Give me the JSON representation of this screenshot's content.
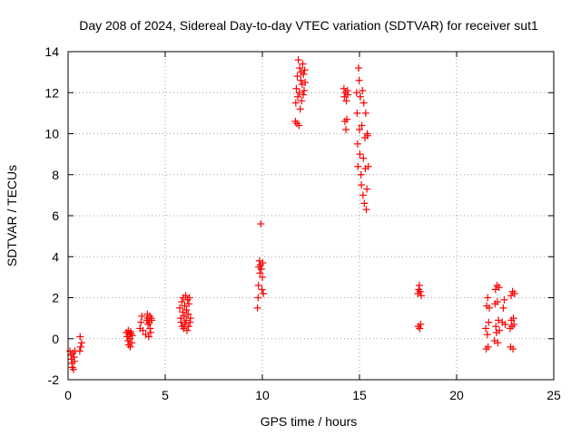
{
  "chart_data": {
    "type": "scatter",
    "title": "Day 208 of 2024, Sidereal Day-to-day VTEC variation (SDTVAR) for receiver sut1",
    "xlabel": "GPS time / hours",
    "ylabel": "SDTVAR / TECUs",
    "xlim": [
      0,
      25
    ],
    "ylim": [
      -2,
      14
    ],
    "xticks": [
      0,
      5,
      10,
      15,
      20,
      25
    ],
    "yticks": [
      -2,
      0,
      2,
      4,
      6,
      8,
      10,
      12,
      14
    ],
    "grid": true,
    "marker": "plus",
    "color": "#ff0000",
    "series": [
      {
        "name": "sut1",
        "points": [
          [
            0.1,
            -0.6
          ],
          [
            0.15,
            -0.8
          ],
          [
            0.18,
            -1.0
          ],
          [
            0.2,
            -1.2
          ],
          [
            0.22,
            -1.4
          ],
          [
            0.25,
            -0.7
          ],
          [
            0.28,
            -1.5
          ],
          [
            0.3,
            -0.9
          ],
          [
            0.32,
            -1.1
          ],
          [
            0.35,
            -0.6
          ],
          [
            0.6,
            -0.6
          ],
          [
            0.62,
            0.1
          ],
          [
            0.65,
            -0.4
          ],
          [
            0.7,
            -0.2
          ],
          [
            3.0,
            0.3
          ],
          [
            3.05,
            0.1
          ],
          [
            3.08,
            -0.1
          ],
          [
            3.1,
            0.4
          ],
          [
            3.12,
            -0.3
          ],
          [
            3.15,
            0.2
          ],
          [
            3.18,
            0.0
          ],
          [
            3.2,
            -0.4
          ],
          [
            3.22,
            0.35
          ],
          [
            3.25,
            0.25
          ],
          [
            3.28,
            -0.2
          ],
          [
            3.3,
            0.15
          ],
          [
            3.7,
            0.5
          ],
          [
            3.75,
            0.8
          ],
          [
            3.8,
            1.1
          ],
          [
            3.85,
            0.4
          ],
          [
            4.0,
            0.2
          ],
          [
            4.05,
            0.9
          ],
          [
            4.08,
            1.2
          ],
          [
            4.1,
            1.0
          ],
          [
            4.12,
            0.7
          ],
          [
            4.15,
            0.1
          ],
          [
            4.18,
            0.8
          ],
          [
            4.2,
            1.1
          ],
          [
            4.22,
            0.5
          ],
          [
            4.25,
            0.3
          ],
          [
            4.28,
            1.0
          ],
          [
            4.3,
            0.9
          ],
          [
            5.75,
            1.5
          ],
          [
            5.8,
            1.0
          ],
          [
            5.82,
            0.8
          ],
          [
            5.85,
            1.8
          ],
          [
            5.88,
            0.6
          ],
          [
            5.9,
            1.3
          ],
          [
            5.92,
            2.0
          ],
          [
            5.95,
            0.5
          ],
          [
            5.98,
            1.1
          ],
          [
            6.0,
            1.6
          ],
          [
            6.02,
            0.7
          ],
          [
            6.05,
            2.1
          ],
          [
            6.08,
            0.9
          ],
          [
            6.1,
            1.4
          ],
          [
            6.12,
            0.4
          ],
          [
            6.15,
            1.9
          ],
          [
            6.18,
            1.2
          ],
          [
            6.2,
            0.6
          ],
          [
            6.22,
            1.7
          ],
          [
            6.25,
            2.0
          ],
          [
            6.28,
            0.8
          ],
          [
            6.3,
            1.0
          ],
          [
            9.75,
            1.5
          ],
          [
            9.78,
            2.0
          ],
          [
            9.8,
            2.6
          ],
          [
            9.82,
            3.5
          ],
          [
            9.85,
            3.8
          ],
          [
            9.88,
            3.2
          ],
          [
            9.9,
            3.6
          ],
          [
            9.92,
            5.6
          ],
          [
            9.95,
            3.4
          ],
          [
            9.98,
            2.4
          ],
          [
            10.0,
            3.0
          ],
          [
            10.02,
            3.7
          ],
          [
            10.05,
            2.2
          ],
          [
            11.7,
            10.6
          ],
          [
            11.72,
            11.5
          ],
          [
            11.75,
            12.2
          ],
          [
            11.78,
            10.5
          ],
          [
            11.8,
            12.8
          ],
          [
            11.82,
            11.8
          ],
          [
            11.85,
            13.6
          ],
          [
            11.88,
            10.4
          ],
          [
            11.9,
            12.0
          ],
          [
            11.92,
            13.2
          ],
          [
            11.95,
            11.2
          ],
          [
            11.98,
            12.6
          ],
          [
            12.0,
            13.0
          ],
          [
            12.02,
            11.6
          ],
          [
            12.05,
            12.4
          ],
          [
            12.08,
            13.4
          ],
          [
            12.1,
            11.9
          ],
          [
            12.12,
            12.9
          ],
          [
            12.15,
            12.1
          ],
          [
            12.18,
            13.1
          ],
          [
            12.2,
            12.5
          ],
          [
            14.2,
            12.2
          ],
          [
            14.22,
            11.8
          ],
          [
            14.25,
            10.6
          ],
          [
            14.28,
            12.0
          ],
          [
            14.3,
            10.2
          ],
          [
            14.32,
            11.6
          ],
          [
            14.35,
            10.7
          ],
          [
            14.38,
            12.1
          ],
          [
            14.4,
            11.9
          ],
          [
            14.85,
            12.0
          ],
          [
            14.88,
            11.0
          ],
          [
            14.9,
            9.5
          ],
          [
            14.92,
            8.4
          ],
          [
            14.95,
            13.2
          ],
          [
            14.98,
            12.6
          ],
          [
            15.0,
            10.2
          ],
          [
            15.02,
            9.0
          ],
          [
            15.05,
            11.8
          ],
          [
            15.08,
            8.0
          ],
          [
            15.1,
            7.5
          ],
          [
            15.12,
            10.4
          ],
          [
            15.15,
            12.1
          ],
          [
            15.18,
            7.0
          ],
          [
            15.2,
            8.8
          ],
          [
            15.22,
            11.5
          ],
          [
            15.25,
            6.6
          ],
          [
            15.28,
            9.8
          ],
          [
            15.3,
            8.3
          ],
          [
            15.32,
            11.0
          ],
          [
            15.35,
            6.3
          ],
          [
            15.38,
            7.3
          ],
          [
            15.4,
            10.0
          ],
          [
            15.42,
            9.9
          ],
          [
            15.45,
            8.4
          ],
          [
            18.0,
            2.2
          ],
          [
            18.02,
            0.6
          ],
          [
            18.05,
            2.4
          ],
          [
            18.08,
            2.6
          ],
          [
            18.1,
            0.5
          ],
          [
            18.12,
            2.3
          ],
          [
            18.15,
            0.7
          ],
          [
            18.18,
            2.1
          ],
          [
            21.5,
            0.5
          ],
          [
            21.52,
            -0.5
          ],
          [
            21.55,
            1.6
          ],
          [
            21.58,
            0.2
          ],
          [
            21.6,
            2.0
          ],
          [
            21.62,
            -0.4
          ],
          [
            21.65,
            0.8
          ],
          [
            21.68,
            1.5
          ],
          [
            21.95,
            -0.1
          ],
          [
            21.98,
            1.7
          ],
          [
            22.0,
            2.4
          ],
          [
            22.02,
            0.6
          ],
          [
            22.05,
            0.3
          ],
          [
            22.08,
            2.6
          ],
          [
            22.1,
            1.8
          ],
          [
            22.12,
            -0.2
          ],
          [
            22.15,
            0.9
          ],
          [
            22.18,
            2.5
          ],
          [
            22.2,
            0.4
          ],
          [
            22.35,
            0.8
          ],
          [
            22.4,
            1.5
          ],
          [
            22.45,
            1.9
          ],
          [
            22.5,
            0.7
          ],
          [
            22.75,
            0.5
          ],
          [
            22.78,
            -0.4
          ],
          [
            22.8,
            2.1
          ],
          [
            22.82,
            0.9
          ],
          [
            22.85,
            0.6
          ],
          [
            22.88,
            2.3
          ],
          [
            22.9,
            -0.5
          ],
          [
            22.92,
            1.0
          ],
          [
            22.95,
            0.7
          ],
          [
            22.98,
            2.2
          ]
        ]
      }
    ]
  }
}
